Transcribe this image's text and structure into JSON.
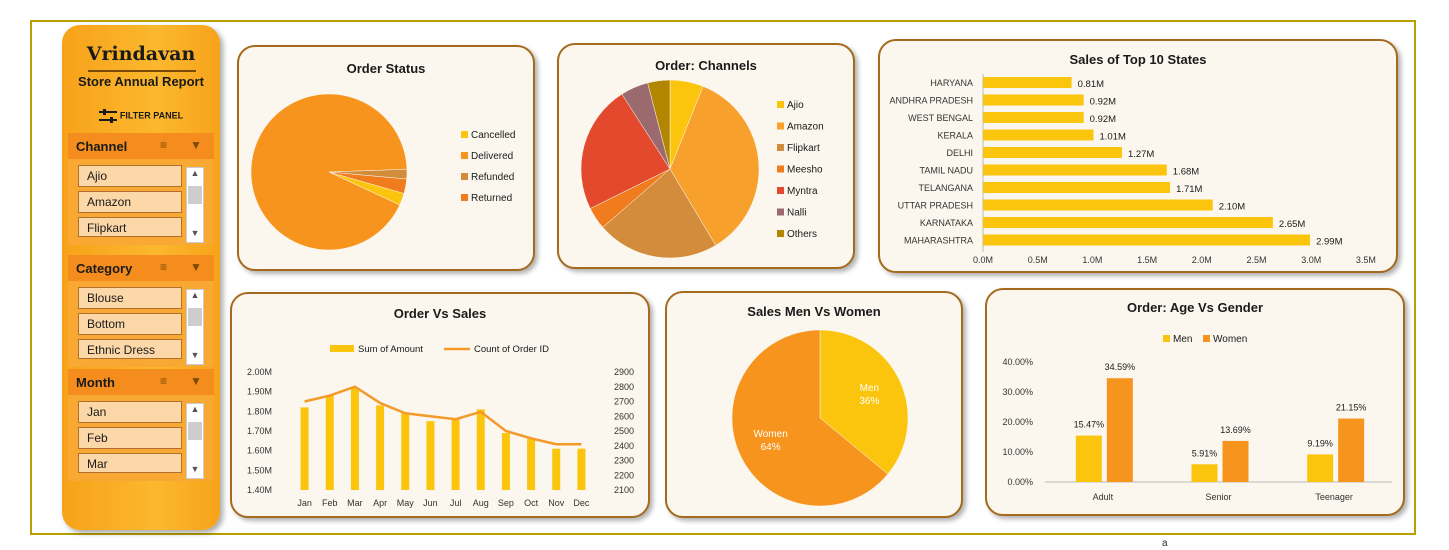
{
  "sidebar": {
    "brand": "Vrindavan",
    "subtitle": "Store Annual Report",
    "filter_panel_label": "FILTER PANEL",
    "slicers": [
      {
        "title": "Channel",
        "items": [
          "Ajio",
          "Amazon",
          "Flipkart"
        ]
      },
      {
        "title": "Category",
        "items": [
          "Blouse",
          "Bottom",
          "Ethnic Dress"
        ]
      },
      {
        "title": "Month",
        "items": [
          "Jan",
          "Feb",
          "Mar"
        ]
      }
    ]
  },
  "footer_text": "a",
  "chart_data": [
    {
      "type": "pie",
      "title": "Order Status",
      "categories": [
        "Cancelled",
        "Delivered",
        "Refunded",
        "Returned"
      ],
      "values": [
        2.5,
        92.5,
        2,
        3
      ],
      "colors": [
        "#fcc50d",
        "#f7941d",
        "#d38c3c",
        "#f07c1e"
      ],
      "legend": "right"
    },
    {
      "type": "pie",
      "title": "Order: Channels",
      "categories": [
        "Ajio",
        "Amazon",
        "Flipkart",
        "Meesho",
        "Myntra",
        "Nalli",
        "Others"
      ],
      "values": [
        6,
        35,
        22,
        4,
        23,
        5,
        4
      ],
      "colors": [
        "#fcc50d",
        "#f7a02b",
        "#d38c3c",
        "#f07c1e",
        "#e2492d",
        "#9b6a6e",
        "#b28600"
      ],
      "legend": "right"
    },
    {
      "type": "bar",
      "orientation": "horizontal",
      "title": "Sales of Top 10 States",
      "categories": [
        "HARYANA",
        "ANDHRA PRADESH",
        "WEST BENGAL",
        "KERALA",
        "DELHI",
        "TAMIL NADU",
        "TELANGANA",
        "UTTAR PRADESH",
        "KARNATAKA",
        "MAHARASHTRA"
      ],
      "values": [
        0.81,
        0.92,
        0.92,
        1.01,
        1.27,
        1.68,
        1.71,
        2.1,
        2.65,
        2.99
      ],
      "data_labels": [
        "0.81M",
        "0.92M",
        "0.92M",
        "1.01M",
        "1.27M",
        "1.68M",
        "1.71M",
        "2.10M",
        "2.65M",
        "2.99M"
      ],
      "xticks": [
        "0.0M",
        "0.5M",
        "1.0M",
        "1.5M",
        "2.0M",
        "2.5M",
        "3.0M",
        "3.5M"
      ],
      "xlim": [
        0,
        3.5
      ],
      "color": "#fcc50d"
    },
    {
      "type": "bar+line",
      "title": "Order Vs Sales",
      "categories": [
        "Jan",
        "Feb",
        "Mar",
        "Apr",
        "May",
        "Jun",
        "Jul",
        "Aug",
        "Sep",
        "Oct",
        "Nov",
        "Dec"
      ],
      "series": [
        {
          "name": "Sum of Amount",
          "type": "bar",
          "axis": "left",
          "values": [
            1.82,
            1.88,
            1.92,
            1.83,
            1.79,
            1.75,
            1.76,
            1.81,
            1.69,
            1.66,
            1.61,
            1.61
          ],
          "color": "#fcc50d"
        },
        {
          "name": "Count of Order ID",
          "type": "line",
          "axis": "right",
          "values": [
            2700,
            2740,
            2800,
            2690,
            2620,
            2600,
            2580,
            2630,
            2500,
            2450,
            2410,
            2410
          ],
          "color": "#f39a2a"
        }
      ],
      "yticks_left": [
        "1.40M",
        "1.50M",
        "1.60M",
        "1.70M",
        "1.80M",
        "1.90M",
        "2.00M"
      ],
      "ylim_left": [
        1.4,
        2.0
      ],
      "yticks_right": [
        "2100",
        "2200",
        "2300",
        "2400",
        "2500",
        "2600",
        "2700",
        "2800",
        "2900"
      ],
      "ylim_right": [
        2100,
        2900
      ],
      "legend": "top"
    },
    {
      "type": "pie",
      "title": "Sales Men Vs Women",
      "categories": [
        "Men",
        "Women"
      ],
      "values": [
        36,
        64
      ],
      "data_labels": [
        "36%",
        "64%"
      ],
      "colors": [
        "#fcc50d",
        "#f7941d"
      ]
    },
    {
      "type": "bar",
      "title": "Order: Age Vs Gender",
      "categories": [
        "Adult",
        "Senior",
        "Teenager"
      ],
      "series": [
        {
          "name": "Men",
          "values": [
            15.47,
            5.91,
            9.19
          ],
          "data_labels": [
            "15.47%",
            "5.91%",
            "9.19%"
          ],
          "color": "#fcc50d"
        },
        {
          "name": "Women",
          "values": [
            34.59,
            13.69,
            21.15
          ],
          "data_labels": [
            "34.59%",
            "13.69%",
            "21.15%"
          ],
          "color": "#f7941d"
        }
      ],
      "yticks": [
        "0.00%",
        "10.00%",
        "20.00%",
        "30.00%",
        "40.00%"
      ],
      "ylim": [
        0,
        40
      ],
      "legend": "top"
    }
  ]
}
